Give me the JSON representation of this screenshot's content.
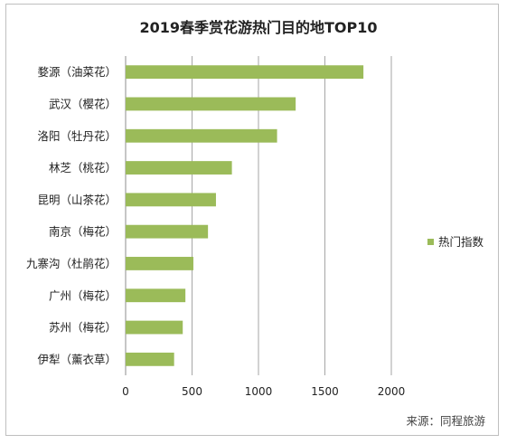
{
  "chart_data": {
    "type": "bar",
    "orientation": "horizontal",
    "title": "2019春季赏花游热门目的地TOP10",
    "categories": [
      "婺源（油菜花）",
      "武汉（樱花）",
      "洛阳（牡丹花）",
      "林芝（桃花）",
      "昆明（山茶花）",
      "南京（梅花）",
      "九寨沟（杜鹃花）",
      "广州（梅花）",
      "苏州（梅花）",
      "伊犁（薰衣草）"
    ],
    "series": [
      {
        "name": "热门指数",
        "values": [
          1790,
          1280,
          1140,
          800,
          680,
          620,
          510,
          450,
          430,
          365
        ]
      }
    ],
    "xlim": [
      0,
      2000
    ],
    "xticks": [
      0,
      500,
      1000,
      1500,
      2000
    ],
    "xlabel": "",
    "ylabel": "",
    "grid": true,
    "legend_position": "right",
    "bar_color": "#9bbb59",
    "source": "来源：同程旅游"
  }
}
